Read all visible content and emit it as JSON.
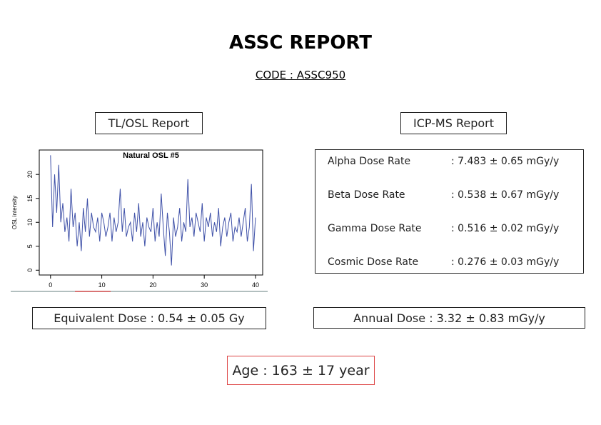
{
  "header": {
    "title": "ASSC REPORT",
    "code": "CODE : ASSC950"
  },
  "tl_osl": {
    "heading": "TL/OSL Report",
    "result": "Equivalent Dose : 0.54 ± 0.05 Gy"
  },
  "icp_ms": {
    "heading": "ICP-MS Report",
    "rows": [
      [
        "Alpha Dose Rate",
        ": 7.483 ± 0.65 mGy/y"
      ],
      [
        "Beta Dose Rate",
        ": 0.538 ± 0.67 mGy/y"
      ],
      [
        "Gamma Dose Rate",
        ": 0.516 ± 0.02 mGy/y"
      ],
      [
        "Cosmic Dose Rate",
        ": 0.276 ± 0.03 mGy/y"
      ]
    ],
    "result": "Annual Dose : 3.32 ± 0.83 mGy/y"
  },
  "age": "Age : 163 ± 17 year",
  "chart_data": {
    "type": "line",
    "title": "Natural OSL #5",
    "ylabel": "OSL intensity",
    "color": "#3f51a8",
    "xlim": [
      -2.2,
      41.4
    ],
    "xticks": [
      0,
      10,
      20,
      30,
      40
    ],
    "ylim": [
      -1,
      25.1
    ],
    "yticks": [
      0,
      5,
      10,
      15,
      20
    ],
    "x": [
      0,
      0.4,
      0.8,
      1.2,
      1.6,
      2,
      2.4,
      2.8,
      3.2,
      3.6,
      4,
      4.4,
      4.8,
      5.2,
      5.6,
      6,
      6.4,
      6.8,
      7.2,
      7.6,
      8,
      8.4,
      8.8,
      9.2,
      9.6,
      10,
      10.4,
      10.8,
      11.2,
      11.6,
      12,
      12.4,
      12.8,
      13.2,
      13.6,
      14,
      14.4,
      14.8,
      15.2,
      15.6,
      16,
      16.4,
      16.8,
      17.2,
      17.6,
      18,
      18.4,
      18.8,
      19.2,
      19.6,
      20,
      20.4,
      20.8,
      21.2,
      21.6,
      22,
      22.4,
      22.8,
      23.2,
      23.6,
      24,
      24.4,
      24.8,
      25.2,
      25.6,
      26,
      26.4,
      26.8,
      27.2,
      27.6,
      28,
      28.4,
      28.8,
      29.2,
      29.6,
      30,
      30.4,
      30.8,
      31.2,
      31.6,
      32,
      32.4,
      32.8,
      33.2,
      33.6,
      34,
      34.4,
      34.8,
      35.2,
      35.6,
      36,
      36.4,
      36.8,
      37.2,
      37.6,
      38,
      38.4,
      38.8,
      39.2,
      39.6,
      40
    ],
    "values": [
      24,
      9,
      20,
      12,
      22,
      10,
      14,
      8,
      11,
      6,
      17,
      9,
      12,
      5,
      10,
      4,
      13,
      8,
      15,
      7,
      12,
      9,
      8,
      11,
      6,
      12,
      10,
      7,
      9,
      12,
      6,
      11,
      8,
      10,
      17,
      8,
      13,
      7,
      9,
      10,
      6,
      12,
      8,
      14,
      7,
      10,
      5,
      11,
      9,
      8,
      13,
      6,
      10,
      7,
      16,
      9,
      3,
      12,
      8,
      1,
      11,
      7,
      9,
      13,
      6,
      10,
      8,
      19,
      9,
      11,
      7,
      12,
      10,
      8,
      14,
      6,
      11,
      9,
      12,
      7,
      10,
      8,
      13,
      5,
      9,
      11,
      7,
      10,
      12,
      6,
      9,
      8,
      11,
      7,
      10,
      13,
      6,
      9,
      18,
      4,
      11
    ]
  }
}
